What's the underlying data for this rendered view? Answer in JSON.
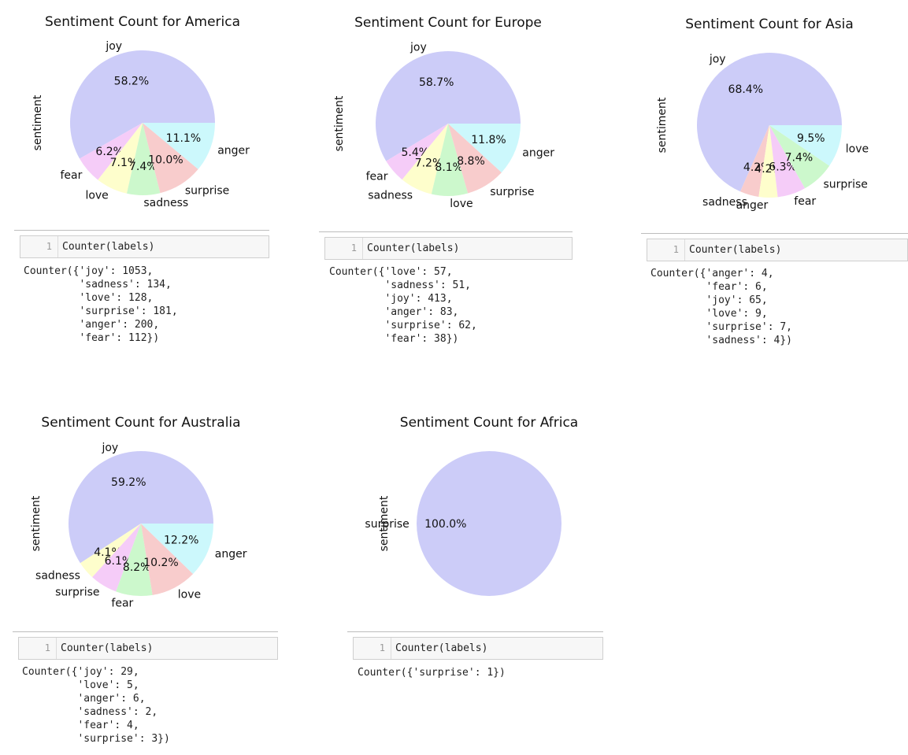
{
  "chart_data": [
    {
      "type": "pie",
      "title": "Sentiment Count for America",
      "ylabel": "sentiment",
      "slices": [
        {
          "label": "joy",
          "value": 1053,
          "pct": "58.2%",
          "color": "#ccccf8"
        },
        {
          "label": "fear",
          "value": 112,
          "pct": "6.2%",
          "color": "#f5ccf8"
        },
        {
          "label": "love",
          "value": 128,
          "pct": "7.1%",
          "color": "#fefecc"
        },
        {
          "label": "sadness",
          "value": 134,
          "pct": "7.4%",
          "color": "#ccf8cc"
        },
        {
          "label": "surprise",
          "value": 181,
          "pct": "10.0%",
          "color": "#f8cccc"
        },
        {
          "label": "anger",
          "value": 200,
          "pct": "11.1%",
          "color": "#ccf8fc"
        }
      ]
    },
    {
      "type": "pie",
      "title": "Sentiment Count for Europe",
      "ylabel": "sentiment",
      "slices": [
        {
          "label": "joy",
          "value": 413,
          "pct": "58.7%",
          "color": "#ccccf8"
        },
        {
          "label": "fear",
          "value": 38,
          "pct": "5.4%",
          "color": "#f5ccf8"
        },
        {
          "label": "sadness",
          "value": 51,
          "pct": "7.2%",
          "color": "#fefecc"
        },
        {
          "label": "love",
          "value": 57,
          "pct": "8.1%",
          "color": "#ccf8cc"
        },
        {
          "label": "surprise",
          "value": 62,
          "pct": "8.8%",
          "color": "#f8cccc"
        },
        {
          "label": "anger",
          "value": 83,
          "pct": "11.8%",
          "color": "#ccf8fc"
        }
      ]
    },
    {
      "type": "pie",
      "title": "Sentiment Count for Asia",
      "ylabel": "sentiment",
      "slices": [
        {
          "label": "joy",
          "value": 65,
          "pct": "68.4%",
          "color": "#ccccf8"
        },
        {
          "label": "sadness",
          "value": 4,
          "pct": "4.2%",
          "color": "#f8cccc"
        },
        {
          "label": "anger",
          "value": 4,
          "pct": "4.2%",
          "color": "#fefecc"
        },
        {
          "label": "fear",
          "value": 6,
          "pct": "6.3%",
          "color": "#f5ccf8"
        },
        {
          "label": "surprise",
          "value": 7,
          "pct": "7.4%",
          "color": "#ccf8cc"
        },
        {
          "label": "love",
          "value": 9,
          "pct": "9.5%",
          "color": "#ccf8fc"
        }
      ]
    },
    {
      "type": "pie",
      "title": "Sentiment Count for Australia",
      "ylabel": "sentiment",
      "slices": [
        {
          "label": "joy",
          "value": 29,
          "pct": "59.2%",
          "color": "#ccccf8"
        },
        {
          "label": "sadness",
          "value": 2,
          "pct": "4.1%",
          "color": "#fefecc"
        },
        {
          "label": "surprise",
          "value": 3,
          "pct": "6.1%",
          "color": "#f5ccf8"
        },
        {
          "label": "fear",
          "value": 4,
          "pct": "8.2%",
          "color": "#ccf8cc"
        },
        {
          "label": "love",
          "value": 5,
          "pct": "10.2%",
          "color": "#f8cccc"
        },
        {
          "label": "anger",
          "value": 6,
          "pct": "12.2%",
          "color": "#ccf8fc"
        }
      ]
    },
    {
      "type": "pie",
      "title": "Sentiment Count for Africa",
      "ylabel": "sentiment",
      "slices": [
        {
          "label": "surprise",
          "value": 1,
          "pct": "100.0%",
          "color": "#ccccf8"
        }
      ]
    }
  ],
  "cells": [
    {
      "line_no": "1",
      "code": "Counter(labels)",
      "output": "Counter({'joy': 1053,\n         'sadness': 134,\n         'love': 128,\n         'surprise': 181,\n         'anger': 200,\n         'fear': 112})"
    },
    {
      "line_no": "1",
      "code": "Counter(labels)",
      "output": "Counter({'love': 57,\n         'sadness': 51,\n         'joy': 413,\n         'anger': 83,\n         'surprise': 62,\n         'fear': 38})"
    },
    {
      "line_no": "1",
      "code": "Counter(labels)",
      "output": "Counter({'anger': 4,\n         'fear': 6,\n         'joy': 65,\n         'love': 9,\n         'surprise': 7,\n         'sadness': 4})"
    },
    {
      "line_no": "1",
      "code": "Counter(labels)",
      "output": "Counter({'joy': 29,\n         'love': 5,\n         'anger': 6,\n         'sadness': 2,\n         'fear': 4,\n         'surprise': 3})"
    },
    {
      "line_no": "1",
      "code": "Counter(labels)",
      "output": "Counter({'surprise': 1})"
    }
  ]
}
